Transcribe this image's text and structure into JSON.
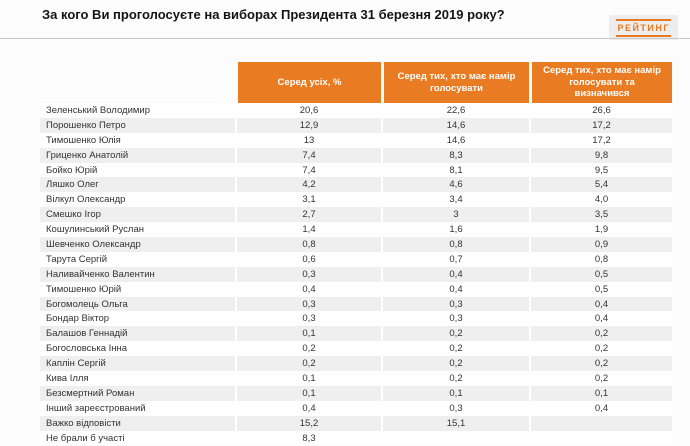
{
  "title": "За кого Ви проголосуєте на виборах Президента 31 березня 2019 року?",
  "logo": {
    "text": "РЕЙТИНГ"
  },
  "colors": {
    "header_bg": "#e97b22",
    "logo_orange": "#e87a24",
    "row_alt": "#efefef"
  },
  "chart_data": {
    "type": "table",
    "title": "За кого Ви проголосуєте на виборах Президента 31 березня 2019 року?",
    "columns": [
      "",
      "Серед усіх, %",
      "Серед тих, хто має намір голосувати",
      "Серед тих, хто має намір голосувати та визначився"
    ],
    "rows": [
      [
        "Зеленський Володимир",
        "20,6",
        "22,6",
        "26,6"
      ],
      [
        "Порошенко Петро",
        "12,9",
        "14,6",
        "17,2"
      ],
      [
        "Тимошенко Юлія",
        "13",
        "14,6",
        "17,2"
      ],
      [
        "Гриценко Анатолій",
        "7,4",
        "8,3",
        "9,8"
      ],
      [
        "Бойко Юрій",
        "7,4",
        "8,1",
        "9,5"
      ],
      [
        "Ляшко Олег",
        "4,2",
        "4,6",
        "5,4"
      ],
      [
        "Вілкул Олександр",
        "3,1",
        "3,4",
        "4,0"
      ],
      [
        "Смешко Ігор",
        "2,7",
        "3",
        "3,5"
      ],
      [
        "Кошулинський Руслан",
        "1,4",
        "1,6",
        "1,9"
      ],
      [
        "Шевченко Олександр",
        "0,8",
        "0,8",
        "0,9"
      ],
      [
        "Тарута Сергій",
        "0,6",
        "0,7",
        "0,8"
      ],
      [
        "Наливайченко Валентин",
        "0,3",
        "0,4",
        "0,5"
      ],
      [
        "Тимошенко Юрій",
        "0,4",
        "0,4",
        "0,5"
      ],
      [
        "Богомолець Ольга",
        "0,3",
        "0,3",
        "0,4"
      ],
      [
        "Бондар Віктор",
        "0,3",
        "0,3",
        "0,4"
      ],
      [
        "Балашов Геннадій",
        "0,1",
        "0,2",
        "0,2"
      ],
      [
        "Богословська Інна",
        "0,2",
        "0,2",
        "0,2"
      ],
      [
        "Каплін Сергій",
        "0,2",
        "0,2",
        "0,2"
      ],
      [
        "Кива Ілля",
        "0,1",
        "0,2",
        "0,2"
      ],
      [
        "Безсмертний Роман",
        "0,1",
        "0,1",
        "0,1"
      ],
      [
        "Інший зареєстрований",
        "0,4",
        "0,3",
        "0,4"
      ],
      [
        "Важко відповісти",
        "15,2",
        "15,1",
        ""
      ],
      [
        "Не брали б участі",
        "8,3",
        "",
        ""
      ]
    ]
  }
}
